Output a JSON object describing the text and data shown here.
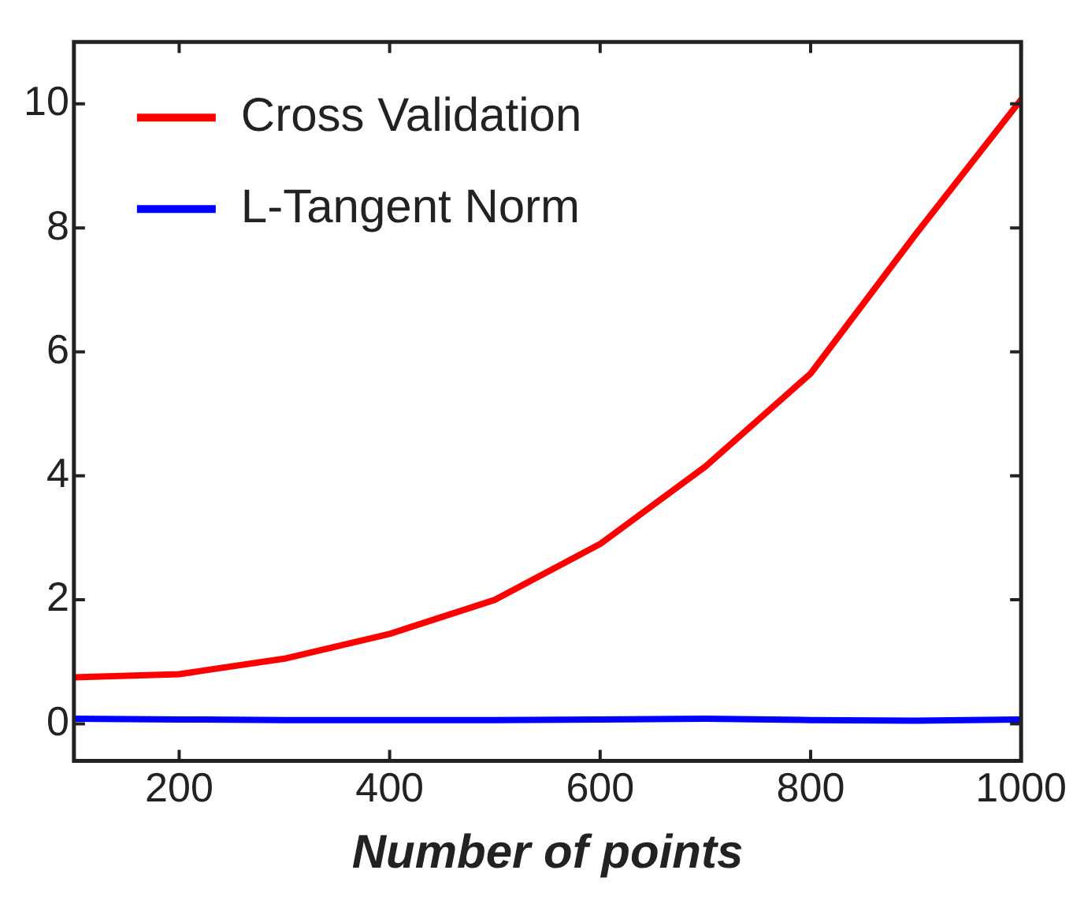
{
  "chart_data": {
    "type": "line",
    "xlabel": "Number of points",
    "x": [
      100,
      200,
      300,
      400,
      500,
      600,
      700,
      800,
      900,
      1000
    ],
    "series": [
      {
        "name": "Cross Validation",
        "color": "#ff0000",
        "values": [
          0.75,
          0.8,
          1.05,
          1.45,
          2.0,
          2.9,
          4.15,
          5.65,
          7.9,
          10.07
        ]
      },
      {
        "name": "L-Tangent Norm",
        "color": "#0000ff",
        "values": [
          0.08,
          0.07,
          0.06,
          0.06,
          0.06,
          0.07,
          0.08,
          0.06,
          0.05,
          0.07
        ]
      }
    ],
    "xlim": [
      100,
      1000
    ],
    "xticks": [
      200,
      400,
      600,
      800,
      1000
    ],
    "ylim": [
      -0.6,
      11
    ],
    "yticks": [
      0,
      2,
      4,
      6,
      8,
      10
    ],
    "grid": false,
    "legend": "top left",
    "marker": "none",
    "line_style": "solid"
  }
}
